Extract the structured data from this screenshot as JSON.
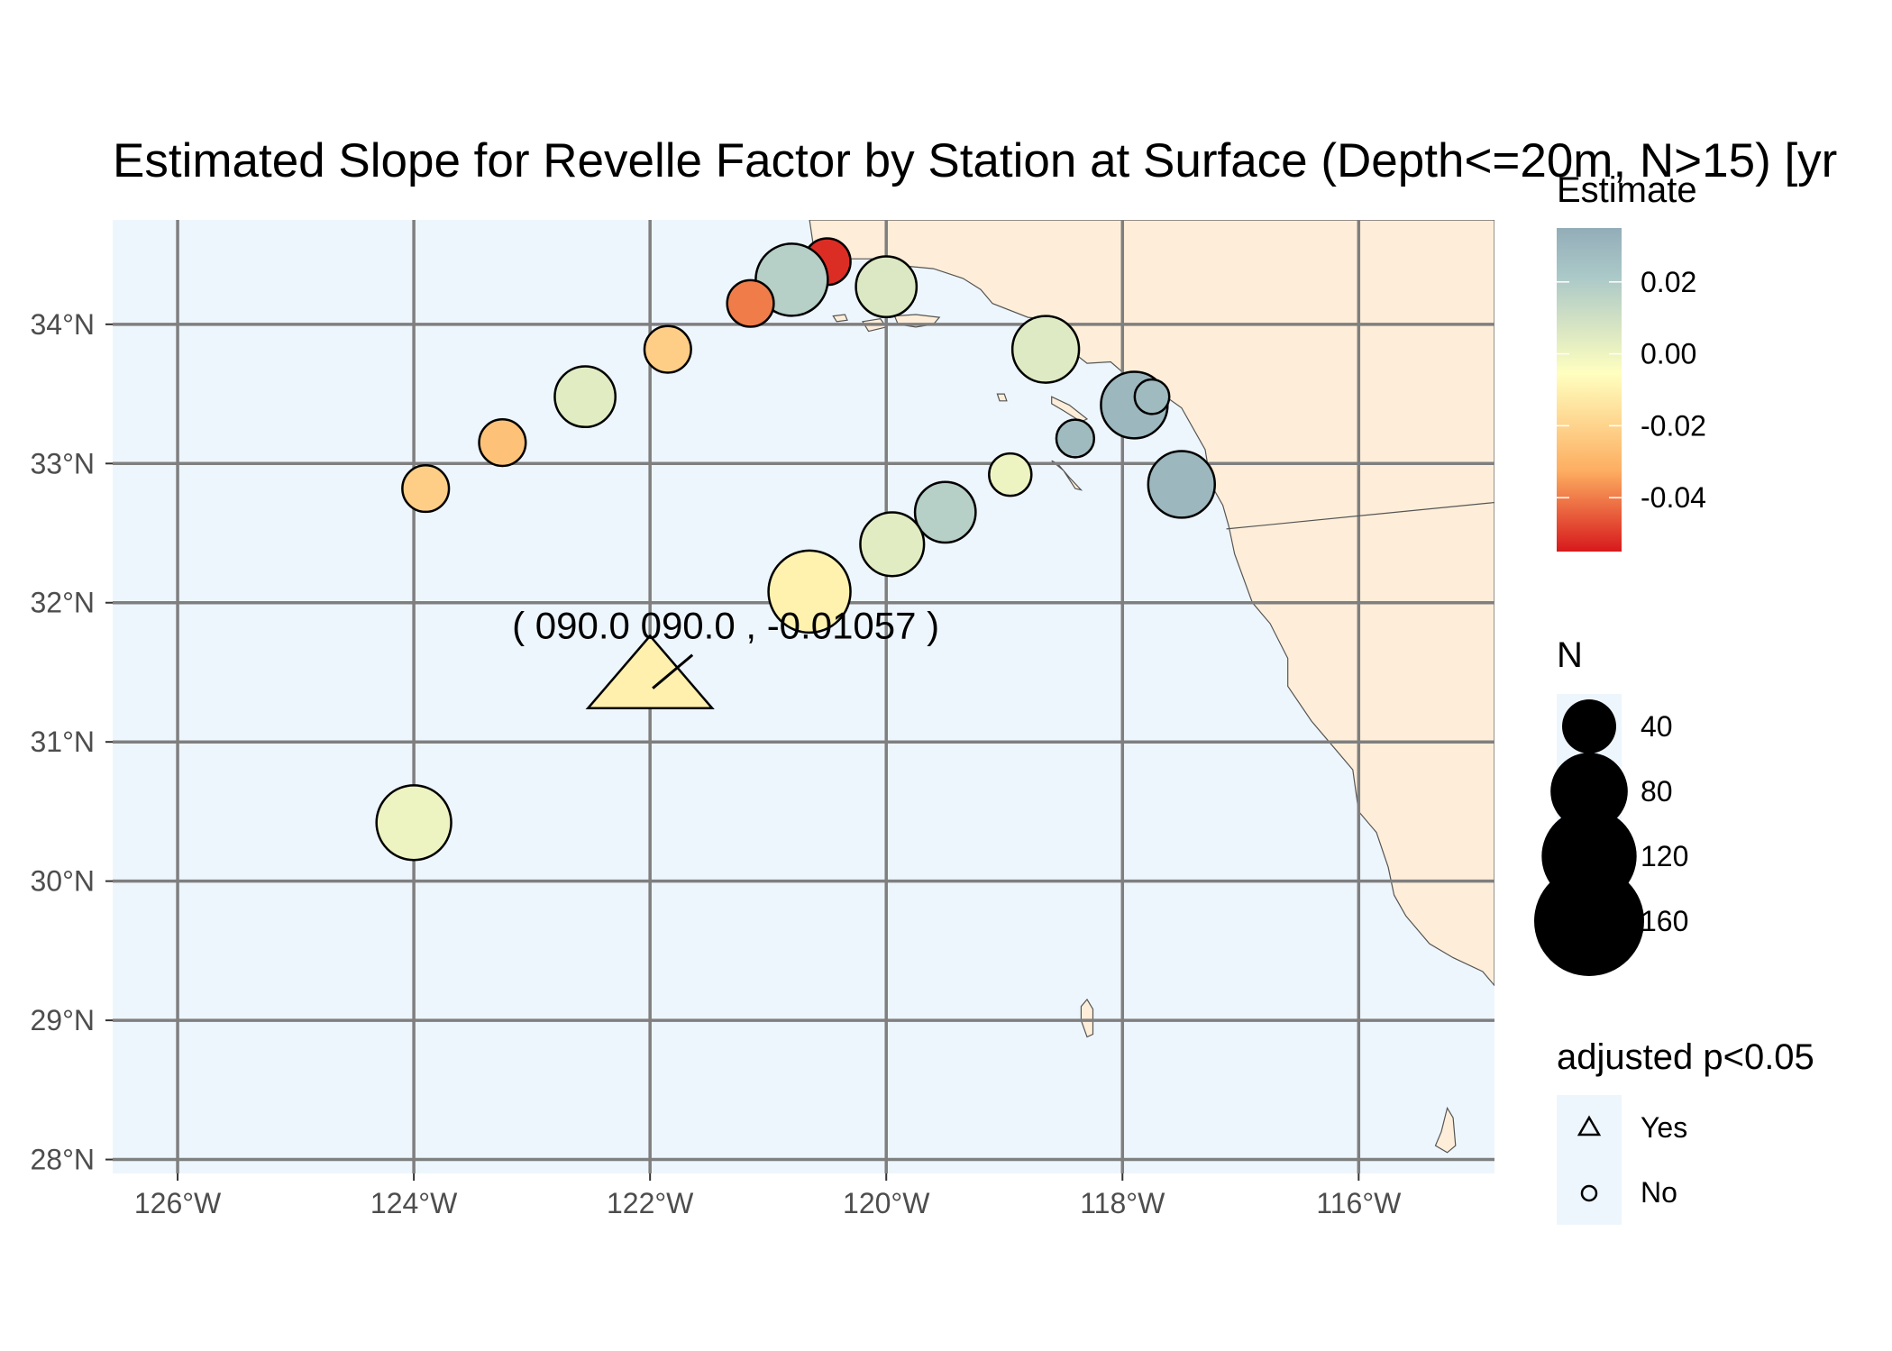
{
  "chart_data": {
    "type": "scatter",
    "title": "Estimated Slope for Revelle Factor by Station at Surface (Depth<=20m, N>15) [yr",
    "xlim": [
      -126.55,
      -114.85
    ],
    "ylim": [
      27.9,
      34.75
    ],
    "x_ticks": [
      -126,
      -124,
      -122,
      -120,
      -118,
      -116
    ],
    "x_tick_labels": [
      "126°W",
      "124°W",
      "122°W",
      "120°W",
      "118°W",
      "116°W"
    ],
    "y_ticks": [
      28,
      29,
      30,
      31,
      32,
      33,
      34
    ],
    "y_tick_labels": [
      "28°N",
      "29°N",
      "30°N",
      "31°N",
      "32°N",
      "33°N",
      "34°N"
    ],
    "grid": true,
    "colors": {
      "ocean": "#eef6fd",
      "land": "#feeed9",
      "coast": "#555555",
      "grid": "#7f7f7f"
    },
    "color_scale": {
      "name": "Estimate",
      "min": -0.055,
      "max": 0.035,
      "stops": [
        "#d7191c",
        "#fdae61",
        "#ffffbf",
        "#abc8c8",
        "#93adb8"
      ],
      "ticks": [
        0.02,
        0.0,
        -0.02,
        -0.04
      ],
      "tick_labels": [
        "0.02",
        "0.00",
        "-0.02",
        "-0.04"
      ]
    },
    "size_scale": {
      "name": "N",
      "values": [
        40,
        80,
        120,
        160
      ],
      "labels": [
        "40",
        "80",
        "120",
        "160"
      ]
    },
    "shape_legend": {
      "name": "adjusted p<0.05",
      "entries": [
        {
          "label": "Yes",
          "shape": "triangle"
        },
        {
          "label": "No",
          "shape": "circle"
        }
      ]
    },
    "points": [
      {
        "lon": -120.5,
        "lat": 34.45,
        "estimate": -0.052,
        "n": 30,
        "significant": false
      },
      {
        "lon": -120.8,
        "lat": 34.32,
        "estimate": 0.018,
        "n": 70,
        "significant": false
      },
      {
        "lon": -120.0,
        "lat": 34.27,
        "estimate": 0.006,
        "n": 50,
        "significant": false
      },
      {
        "lon": -121.15,
        "lat": 34.15,
        "estimate": -0.04,
        "n": 30,
        "significant": false
      },
      {
        "lon": -121.85,
        "lat": 33.82,
        "estimate": -0.022,
        "n": 30,
        "significant": false
      },
      {
        "lon": -122.55,
        "lat": 33.48,
        "estimate": 0.004,
        "n": 50,
        "significant": false
      },
      {
        "lon": -118.65,
        "lat": 33.82,
        "estimate": 0.005,
        "n": 60,
        "significant": false
      },
      {
        "lon": -117.9,
        "lat": 33.42,
        "estimate": 0.03,
        "n": 60,
        "significant": false
      },
      {
        "lon": -117.75,
        "lat": 33.48,
        "estimate": 0.028,
        "n": 17,
        "significant": false
      },
      {
        "lon": -118.4,
        "lat": 33.18,
        "estimate": 0.028,
        "n": 20,
        "significant": false
      },
      {
        "lon": -123.25,
        "lat": 33.15,
        "estimate": -0.026,
        "n": 30,
        "significant": false
      },
      {
        "lon": -123.9,
        "lat": 32.82,
        "estimate": -0.022,
        "n": 30,
        "significant": false
      },
      {
        "lon": -118.95,
        "lat": 32.92,
        "estimate": 0.0,
        "n": 25,
        "significant": false
      },
      {
        "lon": -117.5,
        "lat": 32.85,
        "estimate": 0.03,
        "n": 60,
        "significant": false
      },
      {
        "lon": -119.5,
        "lat": 32.65,
        "estimate": 0.018,
        "n": 50,
        "significant": false
      },
      {
        "lon": -119.95,
        "lat": 32.42,
        "estimate": 0.004,
        "n": 55,
        "significant": false
      },
      {
        "lon": -120.65,
        "lat": 32.08,
        "estimate": -0.01,
        "n": 90,
        "significant": false
      },
      {
        "lon": -124.0,
        "lat": 30.42,
        "estimate": 0.0,
        "n": 75,
        "significant": false
      },
      {
        "lon": -122.0,
        "lat": 31.45,
        "estimate": -0.01057,
        "n": 160,
        "significant": true
      }
    ],
    "annotation": {
      "lon": -122.0,
      "lat": 31.45,
      "text": "( 090.0 090.0 , -0.01057 )"
    },
    "land": [
      {
        "name": "mainland",
        "coords": [
          [
            -120.65,
            34.75
          ],
          [
            -120.62,
            34.58
          ],
          [
            -120.55,
            34.5
          ],
          [
            -120.45,
            34.45
          ],
          [
            -120.3,
            34.47
          ],
          [
            -120.1,
            34.47
          ],
          [
            -119.85,
            34.42
          ],
          [
            -119.6,
            34.4
          ],
          [
            -119.35,
            34.33
          ],
          [
            -119.2,
            34.25
          ],
          [
            -119.1,
            34.15
          ],
          [
            -118.8,
            34.05
          ],
          [
            -118.55,
            34.03
          ],
          [
            -118.45,
            33.95
          ],
          [
            -118.42,
            33.8
          ],
          [
            -118.3,
            33.72
          ],
          [
            -118.1,
            33.73
          ],
          [
            -117.95,
            33.62
          ],
          [
            -117.75,
            33.55
          ],
          [
            -117.5,
            33.4
          ],
          [
            -117.3,
            33.1
          ],
          [
            -117.25,
            32.85
          ],
          [
            -117.15,
            32.7
          ],
          [
            -117.1,
            32.55
          ],
          [
            -117.05,
            32.35
          ],
          [
            -116.9,
            32.0
          ],
          [
            -116.75,
            31.85
          ],
          [
            -116.6,
            31.6
          ],
          [
            -116.6,
            31.4
          ],
          [
            -116.4,
            31.15
          ],
          [
            -116.25,
            31.0
          ],
          [
            -116.05,
            30.8
          ],
          [
            -116.0,
            30.5
          ],
          [
            -115.85,
            30.35
          ],
          [
            -115.75,
            30.1
          ],
          [
            -115.7,
            29.9
          ],
          [
            -115.6,
            29.75
          ],
          [
            -115.4,
            29.55
          ],
          [
            -115.2,
            29.45
          ],
          [
            -114.95,
            29.35
          ],
          [
            -114.85,
            29.25
          ],
          [
            -114.85,
            34.75
          ]
        ]
      },
      {
        "name": "san-miguel-island",
        "coords": [
          [
            -120.45,
            34.06
          ],
          [
            -120.35,
            34.07
          ],
          [
            -120.33,
            34.03
          ],
          [
            -120.42,
            34.02
          ]
        ]
      },
      {
        "name": "santa-rosa-island",
        "coords": [
          [
            -120.2,
            34.02
          ],
          [
            -120.05,
            34.04
          ],
          [
            -120.0,
            33.98
          ],
          [
            -120.15,
            33.95
          ]
        ]
      },
      {
        "name": "santa-cruz-island",
        "coords": [
          [
            -119.93,
            34.06
          ],
          [
            -119.75,
            34.07
          ],
          [
            -119.55,
            34.05
          ],
          [
            -119.6,
            34.0
          ],
          [
            -119.75,
            33.98
          ],
          [
            -119.9,
            34.0
          ]
        ]
      },
      {
        "name": "santa-barbara-island",
        "coords": [
          [
            -119.06,
            33.5
          ],
          [
            -119.0,
            33.5
          ],
          [
            -118.98,
            33.45
          ],
          [
            -119.04,
            33.45
          ]
        ]
      },
      {
        "name": "santa-catalina-island",
        "coords": [
          [
            -118.6,
            33.48
          ],
          [
            -118.45,
            33.42
          ],
          [
            -118.3,
            33.32
          ],
          [
            -118.35,
            33.3
          ],
          [
            -118.5,
            33.38
          ],
          [
            -118.6,
            33.43
          ]
        ]
      },
      {
        "name": "san-clemente-island",
        "coords": [
          [
            -118.6,
            33.02
          ],
          [
            -118.5,
            32.95
          ],
          [
            -118.4,
            32.82
          ],
          [
            -118.35,
            32.81
          ],
          [
            -118.45,
            32.9
          ],
          [
            -118.55,
            33.0
          ]
        ]
      },
      {
        "name": "guadalupe-island",
        "coords": [
          [
            -118.3,
            29.15
          ],
          [
            -118.25,
            29.08
          ],
          [
            -118.25,
            28.9
          ],
          [
            -118.3,
            28.88
          ],
          [
            -118.35,
            29.0
          ],
          [
            -118.35,
            29.1
          ]
        ]
      },
      {
        "name": "cedros-island",
        "coords": [
          [
            -115.25,
            28.37
          ],
          [
            -115.2,
            28.3
          ],
          [
            -115.18,
            28.1
          ],
          [
            -115.25,
            28.05
          ],
          [
            -115.35,
            28.1
          ],
          [
            -115.3,
            28.2
          ]
        ]
      }
    ],
    "border": [
      [
        -117.12,
        32.53
      ],
      [
        -114.85,
        32.72
      ]
    ]
  }
}
